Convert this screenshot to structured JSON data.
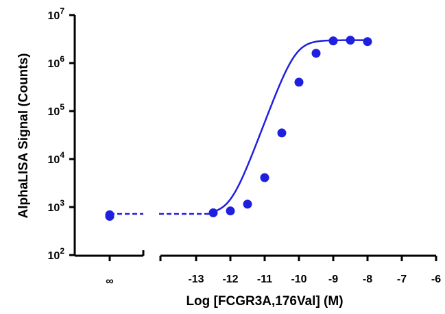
{
  "chart_data": {
    "type": "scatter",
    "title": "",
    "xlabel": "Log [FCGR3A,176Val] (M)",
    "ylabel": "AlphaLISA Signal (Counts)",
    "xscale": "log10 concentration (segmented axis with ∞ break)",
    "yscale": "log",
    "xlim": [
      -13.8,
      -6
    ],
    "ylim": [
      100,
      10000000
    ],
    "x_ticks": [
      -13,
      -12,
      -11,
      -10,
      -9,
      -8,
      -7,
      -6
    ],
    "x_tick_labels": [
      "-13",
      "-12",
      "-11",
      "-10",
      "-9",
      "-8",
      "-7",
      "-6"
    ],
    "break_tick_label": "∞",
    "y_ticks": [
      {
        "base": "10",
        "exp": "2"
      },
      {
        "base": "10",
        "exp": "3"
      },
      {
        "base": "10",
        "exp": "4"
      },
      {
        "base": "10",
        "exp": "5"
      },
      {
        "base": "10",
        "exp": "6"
      },
      {
        "base": "10",
        "exp": "7"
      }
    ],
    "color": "#1f1fe0",
    "series": [
      {
        "points": [
          {
            "x": -12.5,
            "y": 760
          },
          {
            "x": -12.0,
            "y": 830
          },
          {
            "x": -11.5,
            "y": 1150
          },
          {
            "x": -11.0,
            "y": 4100
          },
          {
            "x": -10.5,
            "y": 35000
          },
          {
            "x": -10.0,
            "y": 400000
          },
          {
            "x": -9.5,
            "y": 1600000
          },
          {
            "x": -9.0,
            "y": 2900000
          },
          {
            "x": -8.5,
            "y": 3000000
          },
          {
            "x": -8.0,
            "y": 2800000
          }
        ],
        "zero_concentration_points": [
          690,
          640
        ]
      }
    ],
    "fit": {
      "type": "four-parameter logistic",
      "bottom": 720,
      "top": 3000000,
      "log_ec50": -10.1,
      "hill_slope": 1.9,
      "x_range": [
        -12.5,
        -8.0
      ]
    },
    "baseline": {
      "y": 720,
      "style": "dashed",
      "note": "extends across axis break to ∞"
    },
    "grid": false,
    "legend": "none"
  }
}
